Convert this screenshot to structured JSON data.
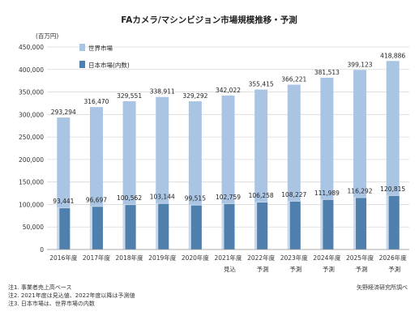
{
  "chart_data": {
    "type": "bar",
    "title": "FAカメラ/マシンビジョン市場規模推移・予測",
    "ylabel": "(百万円)",
    "ylim": [
      0,
      450000
    ],
    "yticks": [
      0,
      50000,
      100000,
      150000,
      200000,
      250000,
      300000,
      350000,
      400000,
      450000
    ],
    "ytick_labels": [
      "0",
      "50,000",
      "100,000",
      "150,000",
      "200,000",
      "250,000",
      "300,000",
      "350,000",
      "400,000",
      "450,000"
    ],
    "grid": true,
    "legend_position": "top-left",
    "categories": [
      "2016年度",
      "2017年度",
      "2018年度",
      "2019年度",
      "2020年度",
      "2021年度",
      "2022年度",
      "2023年度",
      "2024年度",
      "2025年度",
      "2026年度"
    ],
    "category_sublabels": [
      "",
      "",
      "",
      "",
      "",
      "見込",
      "予測",
      "予測",
      "予測",
      "予測",
      "予測"
    ],
    "series": [
      {
        "name": "世界市場",
        "color": "#aac4e4",
        "values": [
          293294,
          316470,
          329551,
          338911,
          329292,
          342022,
          355415,
          366221,
          381513,
          399123,
          418886
        ],
        "labels": [
          "293,294",
          "316,470",
          "329,551",
          "338,911",
          "329,292",
          "342,022",
          "355,415",
          "366,221",
          "381,513",
          "399,123",
          "418,886"
        ]
      },
      {
        "name": "日本市場(内数)",
        "color": "#4f7fad",
        "values": [
          93441,
          96697,
          100562,
          103144,
          99515,
          102759,
          106258,
          108227,
          111989,
          116292,
          120815
        ],
        "labels": [
          "93,441",
          "96,697",
          "100,562",
          "103,144",
          "99,515",
          "102,759",
          "106,258",
          "108,227",
          "111,989",
          "116,292",
          "120,815"
        ]
      }
    ]
  },
  "notes": [
    "注1. 事業者売上高ベース",
    "注2. 2021年度は見込値、2022年度以降は予測値",
    "注3. 日本市場は、世界市場の内数"
  ],
  "source": "矢野経済研究所調べ"
}
